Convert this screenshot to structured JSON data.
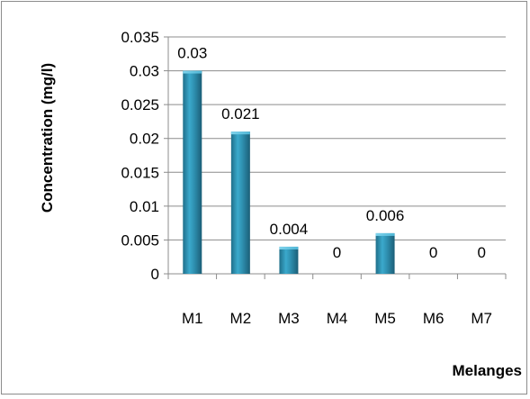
{
  "chart_data": {
    "type": "bar",
    "categories": [
      "M1",
      "M2",
      "M3",
      "M4",
      "M5",
      "M6",
      "M7"
    ],
    "values": [
      0.03,
      0.021,
      0.004,
      0,
      0.006,
      0,
      0
    ],
    "data_labels": [
      "0.03",
      "0.021",
      "0.004",
      "0",
      "0.006",
      "0",
      "0"
    ],
    "ylabel": "Concentration (mg/l)",
    "xlabel": "Melanges",
    "ylim": [
      0,
      0.035
    ],
    "y_ticks": [
      0,
      0.005,
      0.01,
      0.015,
      0.02,
      0.025,
      0.03,
      0.035
    ],
    "y_tick_labels": [
      "0",
      "0.005",
      "0.01",
      "0.015",
      "0.02",
      "0.025",
      "0.03",
      "0.035"
    ],
    "grid": true,
    "legend": "none",
    "bar_color": "#2E8FAF",
    "gridline_color": "#8c8c8c"
  }
}
